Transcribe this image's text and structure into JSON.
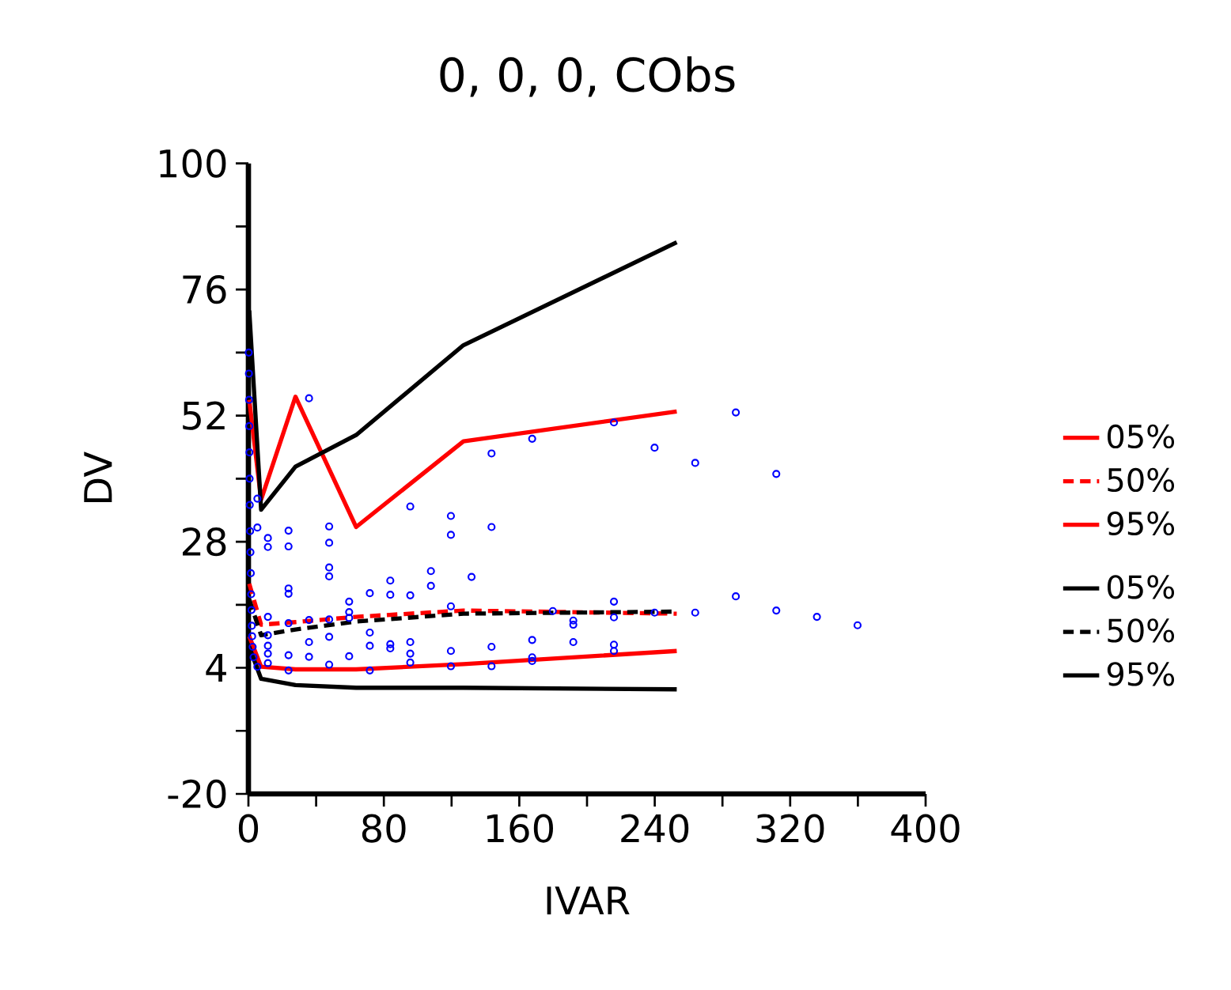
{
  "chart_data": {
    "type": "line",
    "title": "0, 0, 0, CObs",
    "xlabel": "IVAR",
    "ylabel": "DV",
    "xlim": [
      0,
      400
    ],
    "ylim": [
      -20,
      100
    ],
    "xticks": [
      0,
      {
        "value": 40,
        "label": null
      },
      80,
      {
        "value": 120,
        "label": null
      },
      160,
      {
        "value": 200,
        "label": null
      },
      240,
      {
        "value": 280,
        "label": null
      },
      320,
      {
        "value": 360,
        "label": null
      },
      400
    ],
    "yticks": [
      -20,
      {
        "value": -8,
        "label": null
      },
      4,
      {
        "value": 16,
        "label": null
      },
      28,
      {
        "value": 40,
        "label": null
      },
      52,
      {
        "value": 64,
        "label": null
      },
      76,
      {
        "value": 88,
        "label": null
      },
      100
    ],
    "legend": "right",
    "grid": false,
    "series": [
      {
        "name": "05%",
        "color": "#ff0000",
        "line_style": "solid",
        "x": [
          0.5,
          7.5,
          27.8,
          63.6,
          127,
          253
        ],
        "values": [
          10,
          4.2,
          3.7,
          3.7,
          4.7,
          7.2
        ]
      },
      {
        "name": "50%",
        "color": "#ff0000",
        "line_style": "dashed",
        "x": [
          0.5,
          7.5,
          27.8,
          63.6,
          127,
          253
        ],
        "values": [
          20,
          12.2,
          12.7,
          13.7,
          14.9,
          14.3
        ]
      },
      {
        "name": "95%",
        "color": "#ff0000",
        "line_style": "solid",
        "x": [
          0.5,
          7.5,
          27.8,
          63.6,
          127,
          253
        ],
        "values": [
          55,
          36,
          55.6,
          30.8,
          47.1,
          52.8
        ]
      },
      {
        "name": "05%",
        "color": "#000000",
        "line_style": "solid",
        "x": [
          0.5,
          7.5,
          27.8,
          63.6,
          127,
          253
        ],
        "values": [
          8,
          1.9,
          0.7,
          0.2,
          0.2,
          -0.1
        ]
      },
      {
        "name": "50%",
        "color": "#000000",
        "line_style": "dashed",
        "x": [
          0.5,
          7.5,
          27.8,
          63.6,
          127,
          253
        ],
        "values": [
          17,
          10.2,
          11.3,
          12.8,
          14.3,
          14.7
        ]
      },
      {
        "name": "95%",
        "color": "#000000",
        "line_style": "solid",
        "x": [
          0.5,
          7.5,
          27.8,
          63.6,
          127,
          253
        ],
        "values": [
          72,
          34.1,
          42.3,
          48.3,
          65.4,
          85
        ]
      },
      {
        "type": "scatter",
        "color": "#0000ff",
        "marker": "circle",
        "x": [
          0.2,
          0.3,
          0.4,
          0.5,
          0.6,
          0.7,
          0.8,
          1,
          1.2,
          1.4,
          1.6,
          1.8,
          2,
          2.2,
          2.5,
          3,
          5.3,
          5.3,
          5.3,
          11.5,
          11.5,
          11.5,
          11.5,
          11.5,
          11.5,
          11.5,
          23.7,
          23.7,
          23.7,
          23.7,
          23.7,
          23.7,
          23.7,
          35.8,
          35.8,
          35.8,
          35.8,
          47.7,
          47.7,
          47.7,
          47.7,
          47.7,
          47.7,
          47.7,
          59.5,
          59.5,
          59.5,
          59.5,
          71.7,
          71.7,
          71.7,
          71.7,
          83.8,
          83.8,
          83.8,
          83.8,
          95.6,
          95.6,
          95.6,
          95.6,
          95.6,
          107.8,
          107.8,
          119.6,
          119.6,
          119.6,
          119.6,
          119.6,
          131.8,
          143.6,
          143.6,
          143.6,
          143.6,
          167.6,
          167.6,
          167.6,
          167.6,
          179.8,
          191.9,
          191.9,
          191.9,
          215.9,
          215.9,
          215.9,
          215.9,
          215.9,
          239.9,
          239.9,
          263.9,
          263.9,
          287.9,
          287.9,
          311.8,
          311.8,
          335.8,
          359.8
        ],
        "values": [
          64,
          60,
          55,
          50,
          45,
          40,
          35,
          30,
          26,
          22,
          18,
          15,
          12,
          10,
          8,
          6,
          36.2,
          30.7,
          4.2,
          28.7,
          27,
          13.7,
          10.2,
          8.2,
          6.7,
          4.9,
          30.1,
          27.1,
          19.1,
          18.1,
          12.5,
          6.4,
          3.5,
          55.3,
          13.1,
          8.9,
          6.1,
          30.9,
          27.8,
          23.1,
          21.4,
          13.2,
          9.9,
          4.6,
          16.6,
          14.6,
          13.5,
          6.2,
          18.2,
          10.7,
          8.2,
          3.5,
          20.6,
          17.9,
          8.5,
          7.7,
          34.7,
          17.8,
          8.9,
          6.7,
          5,
          22.4,
          19.6,
          32.9,
          29.3,
          15.7,
          7.2,
          4.3,
          21.3,
          44.8,
          30.8,
          8,
          4.3,
          47.6,
          9.3,
          6,
          5.3,
          14.8,
          13,
          12.2,
          8.9,
          50.7,
          16.6,
          13.6,
          8.4,
          7.2,
          45.9,
          14.5,
          43,
          14.5,
          52.6,
          17.6,
          40.9,
          14.9,
          13.7,
          12.1
        ]
      }
    ]
  }
}
